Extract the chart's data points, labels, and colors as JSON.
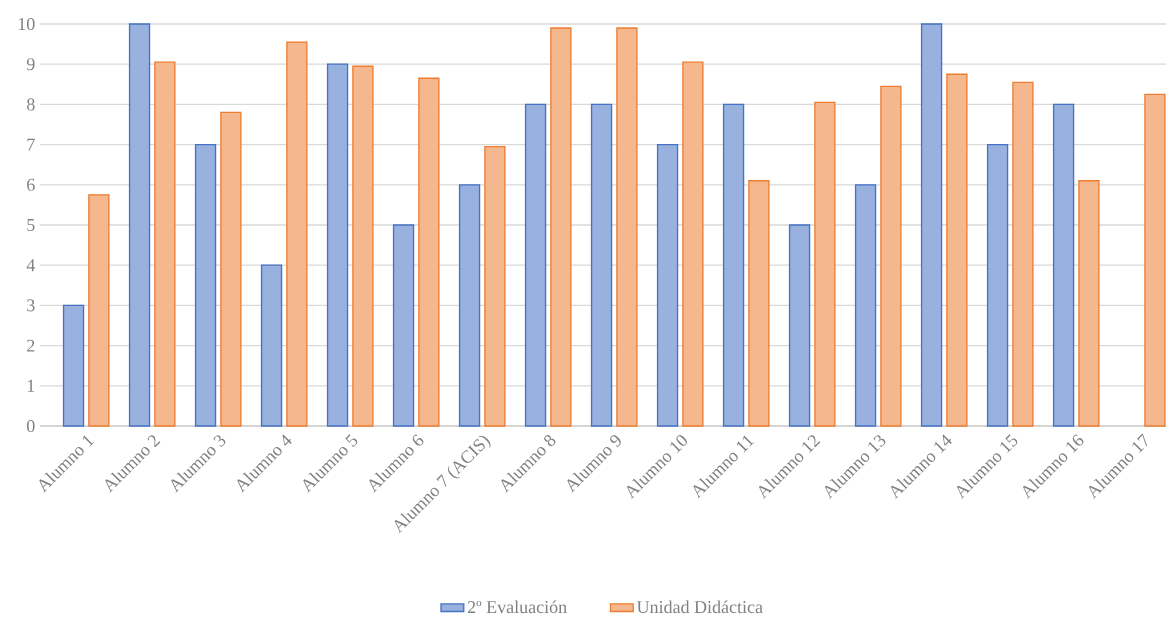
{
  "chart_data": {
    "type": "bar",
    "categories": [
      "Alumno 1",
      "Alumno 2",
      "Alumno 3",
      "Alumno 4",
      "Alumno 5",
      "Alumno 6",
      "Alumno 7 (ACIS)",
      "Alumno 8",
      "Alumno 9",
      "Alumno 10",
      "Alumno 11",
      "Alumno 12",
      "Alumno 13",
      "Alumno 14",
      "Alumno 15",
      "Alumno 16",
      "Alumno 17"
    ],
    "series": [
      {
        "name": "2º Evaluación",
        "color": "#4472c4",
        "values": [
          3,
          10,
          7,
          4,
          9,
          5,
          6,
          8,
          8,
          7,
          8,
          5,
          6,
          10,
          7,
          8,
          null
        ]
      },
      {
        "name": "Unidad Didáctica",
        "color": "#ed7d31",
        "values": [
          5.75,
          9.05,
          7.8,
          9.55,
          8.95,
          8.65,
          6.95,
          9.9,
          9.9,
          9.05,
          6.1,
          8.05,
          8.45,
          8.75,
          8.55,
          6.1,
          8.25
        ]
      }
    ],
    "ylim": [
      0,
      10
    ],
    "yticks": [
      0,
      1,
      2,
      3,
      4,
      5,
      6,
      7,
      8,
      9,
      10
    ],
    "grid": "y",
    "legend": "bottom"
  }
}
